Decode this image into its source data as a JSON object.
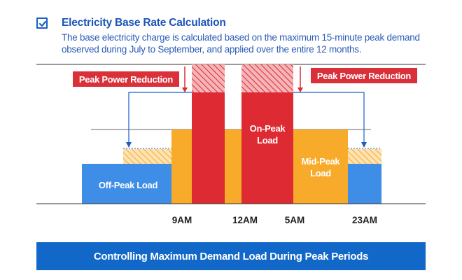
{
  "header": {
    "title": "Electricity Base Rate Calculation",
    "description": "The base electricity charge is calculated based on the maximum 15-minute peak demand observed during July to September, and applied over the entire 12 months.",
    "checkbox_icon": "check-icon"
  },
  "labels": {
    "reduction_left": "Peak Power Reduction",
    "reduction_right": "Peak Power Reduction",
    "off_peak": "Off-Peak Load",
    "on_peak_line1": "On-Peak",
    "on_peak_line2": "Load",
    "mid_peak_line1": "Mid-Peak",
    "mid_peak_line2": "Load"
  },
  "time_axis": [
    "9AM",
    "12AM",
    "5AM",
    "23AM"
  ],
  "colors": {
    "off_peak": "#3e8ee8",
    "mid_peak": "#f8aa2a",
    "on_peak": "#de2a33",
    "label_bg": "#d9303a",
    "arrow": "#1a5fc4",
    "banner": "#1268c8"
  },
  "footer": {
    "banner": "Controlling Maximum Demand Load During Peak Periods"
  }
}
